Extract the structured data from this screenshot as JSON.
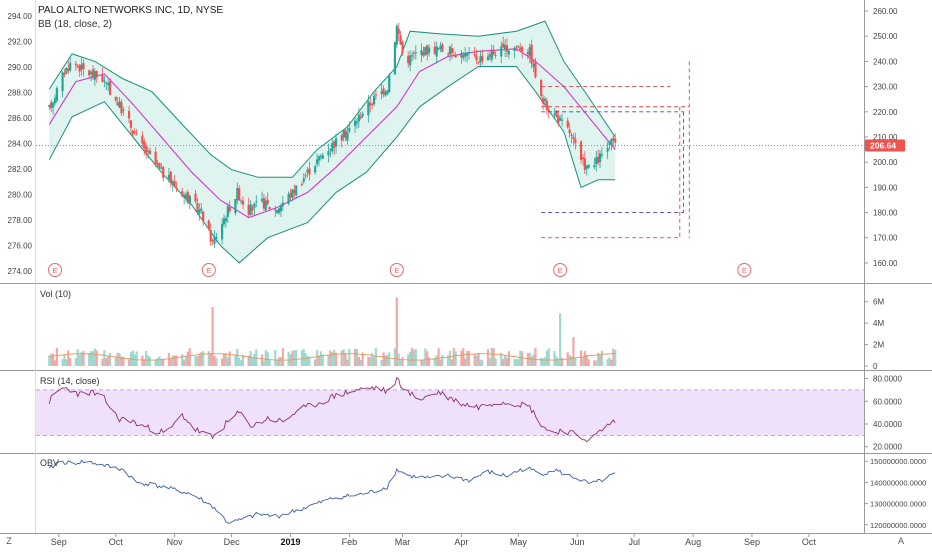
{
  "header": {
    "title": "PALO ALTO NETWORKS INC, 1D, NYSE",
    "indicator_label": "BB (18, close, 2)"
  },
  "colors": {
    "up": "#26a69a",
    "down": "#ef5350",
    "band": "#1a8f7f",
    "band_fill": "#dff3ef",
    "basis": "#d136d1",
    "rsi_line": "#8e2d74",
    "rsi_fill": "#f0e1fb",
    "obv_line": "#3c5fa9",
    "vol_ma": "#e8965a",
    "proj_red": "#e0434f",
    "proj_blue": "#4a40c9",
    "price_tag_bg": "#ef5350"
  },
  "chart_data": [
    {
      "type": "candlestick",
      "title": "PALO ALTO NETWORKS INC, 1D, NYSE",
      "left_axis_ticks": [
        "294.00",
        "292.00",
        "290.00",
        "288.00",
        "286.00",
        "284.00",
        "282.00",
        "280.00",
        "278.00",
        "276.00",
        "274.00"
      ],
      "right_axis_ticks": [
        "260.00",
        "250.00",
        "240.00",
        "230.00",
        "220.00",
        "210.00",
        "200.00",
        "190.00",
        "180.00",
        "170.00",
        "160.00"
      ],
      "ylim": [
        156,
        262
      ],
      "last_price_label": "206.64",
      "last_price": 206.64,
      "x_ticks": [
        "Sep",
        "Oct",
        "Nov",
        "Dec",
        "2019",
        "Feb",
        "Mar",
        "Apr",
        "May",
        "Jun",
        "Jul",
        "Aug",
        "Sep",
        "Oct"
      ],
      "earnings_markers": [
        {
          "label": "E",
          "date": "2018-08-30"
        },
        {
          "label": "E",
          "date": "2018-11-19"
        },
        {
          "label": "E",
          "date": "2019-02-26"
        },
        {
          "label": "E",
          "date": "2019-05-23"
        },
        {
          "label": "E",
          "date": "2019-08-28"
        }
      ],
      "price_path": [
        [
          "2018-08-27",
          221
        ],
        [
          "2018-09-04",
          236
        ],
        [
          "2018-09-08",
          240
        ],
        [
          "2018-09-15",
          236
        ],
        [
          "2018-09-24",
          233
        ],
        [
          "2018-10-05",
          220
        ],
        [
          "2018-10-15",
          206
        ],
        [
          "2018-10-25",
          196
        ],
        [
          "2018-11-05",
          188
        ],
        [
          "2018-11-15",
          180
        ],
        [
          "2018-11-21",
          168
        ],
        [
          "2018-11-29",
          181
        ],
        [
          "2018-12-04",
          188
        ],
        [
          "2018-12-10",
          181
        ],
        [
          "2018-12-17",
          184
        ],
        [
          "2018-12-24",
          181
        ],
        [
          "2019-01-02",
          188
        ],
        [
          "2019-01-10",
          196
        ],
        [
          "2019-01-20",
          205
        ],
        [
          "2019-01-31",
          212
        ],
        [
          "2019-02-08",
          220
        ],
        [
          "2019-02-15",
          226
        ],
        [
          "2019-02-21",
          230
        ],
        [
          "2019-02-26",
          254
        ],
        [
          "2019-03-02",
          240
        ],
        [
          "2019-03-10",
          244
        ],
        [
          "2019-03-20",
          245
        ],
        [
          "2019-04-01",
          243
        ],
        [
          "2019-04-10",
          241
        ],
        [
          "2019-04-20",
          244
        ],
        [
          "2019-05-01",
          246
        ],
        [
          "2019-05-07",
          244
        ],
        [
          "2019-05-13",
          225
        ],
        [
          "2019-05-21",
          218
        ],
        [
          "2019-05-28",
          212
        ],
        [
          "2019-06-03",
          200
        ],
        [
          "2019-06-08",
          197
        ],
        [
          "2019-06-14",
          203
        ],
        [
          "2019-06-21",
          209
        ]
      ],
      "bollinger": {
        "upper": [
          [
            "2018-08-27",
            229
          ],
          [
            "2018-09-08",
            243
          ],
          [
            "2018-09-20",
            240
          ],
          [
            "2018-10-05",
            233
          ],
          [
            "2018-10-20",
            228
          ],
          [
            "2018-11-05",
            215
          ],
          [
            "2018-11-20",
            203
          ],
          [
            "2018-12-01",
            197
          ],
          [
            "2018-12-15",
            194
          ],
          [
            "2019-01-02",
            194
          ],
          [
            "2019-01-15",
            205
          ],
          [
            "2019-01-31",
            214
          ],
          [
            "2019-02-14",
            228
          ],
          [
            "2019-02-26",
            238
          ],
          [
            "2019-03-05",
            252
          ],
          [
            "2019-03-20",
            251
          ],
          [
            "2019-04-10",
            250
          ],
          [
            "2019-04-30",
            252
          ],
          [
            "2019-05-15",
            256
          ],
          [
            "2019-05-25",
            240
          ],
          [
            "2019-06-05",
            228
          ],
          [
            "2019-06-21",
            210
          ]
        ],
        "basis": [
          [
            "2018-08-27",
            215
          ],
          [
            "2018-09-10",
            232
          ],
          [
            "2018-09-25",
            235
          ],
          [
            "2018-10-10",
            223
          ],
          [
            "2018-10-25",
            210
          ],
          [
            "2018-11-10",
            196
          ],
          [
            "2018-11-25",
            185
          ],
          [
            "2018-12-10",
            178
          ],
          [
            "2018-12-25",
            182
          ],
          [
            "2019-01-10",
            188
          ],
          [
            "2019-01-25",
            198
          ],
          [
            "2019-02-10",
            210
          ],
          [
            "2019-02-26",
            222
          ],
          [
            "2019-03-10",
            236
          ],
          [
            "2019-03-25",
            242
          ],
          [
            "2019-04-10",
            244
          ],
          [
            "2019-04-30",
            245
          ],
          [
            "2019-05-10",
            240
          ],
          [
            "2019-05-25",
            230
          ],
          [
            "2019-06-08",
            217
          ],
          [
            "2019-06-21",
            205
          ]
        ],
        "lower": [
          [
            "2018-08-27",
            201
          ],
          [
            "2018-09-08",
            218
          ],
          [
            "2018-09-25",
            224
          ],
          [
            "2018-10-10",
            210
          ],
          [
            "2018-10-25",
            196
          ],
          [
            "2018-11-10",
            183
          ],
          [
            "2018-11-25",
            167
          ],
          [
            "2018-12-05",
            160
          ],
          [
            "2018-12-20",
            170
          ],
          [
            "2019-01-10",
            176
          ],
          [
            "2019-01-25",
            188
          ],
          [
            "2019-02-10",
            196
          ],
          [
            "2019-02-26",
            210
          ],
          [
            "2019-03-10",
            222
          ],
          [
            "2019-03-25",
            230
          ],
          [
            "2019-04-10",
            238
          ],
          [
            "2019-04-30",
            238
          ],
          [
            "2019-05-10",
            228
          ],
          [
            "2019-05-25",
            212
          ],
          [
            "2019-06-03",
            190
          ],
          [
            "2019-06-12",
            193
          ],
          [
            "2019-06-21",
            193
          ]
        ]
      },
      "projection_lines": [
        {
          "color": "red",
          "from": "2019-05-13",
          "to": "2019-07-20",
          "y": 230
        },
        {
          "color": "red",
          "from": "2019-05-13",
          "to": "2019-07-30",
          "y": 222
        },
        {
          "color": "blue",
          "from": "2019-05-13",
          "to": "2019-07-27",
          "y": 220
        },
        {
          "color": "blue",
          "from": "2019-05-13",
          "to": "2019-07-27",
          "y": 180
        },
        {
          "color": "red",
          "from": "2019-05-13",
          "to": "2019-07-25",
          "y": 170
        },
        {
          "color": "red",
          "vertical": true,
          "x": "2019-07-30",
          "from_y": 240,
          "to_y": 170
        },
        {
          "color": "blue",
          "vertical": true,
          "x": "2019-07-27",
          "from_y": 220,
          "to_y": 180
        },
        {
          "color": "red",
          "vertical": true,
          "x": "2019-07-25",
          "from_y": 222,
          "to_y": 170
        }
      ]
    },
    {
      "type": "bar",
      "title": "Vol (10)",
      "axis_ticks": [
        "6M",
        "4M",
        "2M",
        "0"
      ],
      "ylim": [
        0,
        7
      ],
      "spikes": [
        {
          "date": "2018-11-21",
          "value": 5.5
        },
        {
          "date": "2019-02-26",
          "value": 6.4
        },
        {
          "date": "2019-05-23",
          "value": 4.9
        },
        {
          "date": "2018-09-15",
          "value": 3.2
        },
        {
          "date": "2019-05-30",
          "value": 2.7
        }
      ],
      "baseline": 1.0
    },
    {
      "type": "line",
      "title": "RSI (14, close)",
      "axis_ticks": [
        "80.0000",
        "60.0000",
        "40.0000",
        "20.0000"
      ],
      "ylim": [
        18,
        84
      ],
      "bands": [
        70,
        30
      ],
      "path": [
        [
          "2018-08-27",
          60
        ],
        [
          "2018-09-02",
          72
        ],
        [
          "2018-09-08",
          70
        ],
        [
          "2018-09-12",
          66
        ],
        [
          "2018-09-18",
          68
        ],
        [
          "2018-09-25",
          62
        ],
        [
          "2018-10-02",
          45
        ],
        [
          "2018-10-10",
          42
        ],
        [
          "2018-10-20",
          35
        ],
        [
          "2018-10-28",
          32
        ],
        [
          "2018-11-05",
          48
        ],
        [
          "2018-11-12",
          35
        ],
        [
          "2018-11-21",
          28
        ],
        [
          "2018-11-28",
          40
        ],
        [
          "2018-12-05",
          50
        ],
        [
          "2018-12-12",
          38
        ],
        [
          "2018-12-20",
          45
        ],
        [
          "2018-12-28",
          42
        ],
        [
          "2019-01-05",
          52
        ],
        [
          "2019-01-15",
          58
        ],
        [
          "2019-01-25",
          65
        ],
        [
          "2019-02-05",
          70
        ],
        [
          "2019-02-15",
          72
        ],
        [
          "2019-02-22",
          68
        ],
        [
          "2019-02-26",
          80
        ],
        [
          "2019-03-03",
          68
        ],
        [
          "2019-03-10",
          62
        ],
        [
          "2019-03-20",
          68
        ],
        [
          "2019-04-01",
          58
        ],
        [
          "2019-04-10",
          55
        ],
        [
          "2019-04-20",
          60
        ],
        [
          "2019-05-01",
          58
        ],
        [
          "2019-05-07",
          55
        ],
        [
          "2019-05-13",
          40
        ],
        [
          "2019-05-18",
          32
        ],
        [
          "2019-05-25",
          35
        ],
        [
          "2019-06-03",
          28
        ],
        [
          "2019-06-08",
          26
        ],
        [
          "2019-06-14",
          35
        ],
        [
          "2019-06-18",
          40
        ],
        [
          "2019-06-21",
          43
        ]
      ]
    },
    {
      "type": "line",
      "title": "OBV",
      "axis_ticks": [
        "150000000.0000",
        "140000000.0000",
        "130000000.0000",
        "120000000.0000"
      ],
      "ylim": [
        118,
        152
      ],
      "path": [
        [
          "2018-08-27",
          146
        ],
        [
          "2018-09-01",
          150
        ],
        [
          "2018-09-08",
          149
        ],
        [
          "2018-09-15",
          150
        ],
        [
          "2018-09-25",
          148
        ],
        [
          "2018-10-05",
          146
        ],
        [
          "2018-10-12",
          140
        ],
        [
          "2018-10-20",
          139
        ],
        [
          "2018-10-30",
          137
        ],
        [
          "2018-11-08",
          135
        ],
        [
          "2018-11-15",
          132
        ],
        [
          "2018-11-22",
          128
        ],
        [
          "2018-11-29",
          121
        ],
        [
          "2018-12-05",
          122
        ],
        [
          "2018-12-15",
          125
        ],
        [
          "2018-12-25",
          124
        ],
        [
          "2019-01-05",
          127
        ],
        [
          "2019-01-15",
          130
        ],
        [
          "2019-01-25",
          133
        ],
        [
          "2019-02-05",
          134
        ],
        [
          "2019-02-15",
          136
        ],
        [
          "2019-02-21",
          138
        ],
        [
          "2019-02-26",
          146
        ],
        [
          "2019-03-05",
          143
        ],
        [
          "2019-03-15",
          142
        ],
        [
          "2019-03-25",
          143
        ],
        [
          "2019-04-05",
          141
        ],
        [
          "2019-04-15",
          145
        ],
        [
          "2019-04-25",
          143
        ],
        [
          "2019-05-05",
          147
        ],
        [
          "2019-05-13",
          144
        ],
        [
          "2019-05-20",
          146
        ],
        [
          "2019-05-25",
          144
        ],
        [
          "2019-06-01",
          142
        ],
        [
          "2019-06-08",
          139
        ],
        [
          "2019-06-14",
          141
        ],
        [
          "2019-06-21",
          144
        ]
      ]
    }
  ],
  "bottom_bar": {
    "left_button": "Z",
    "right_button": "A"
  }
}
